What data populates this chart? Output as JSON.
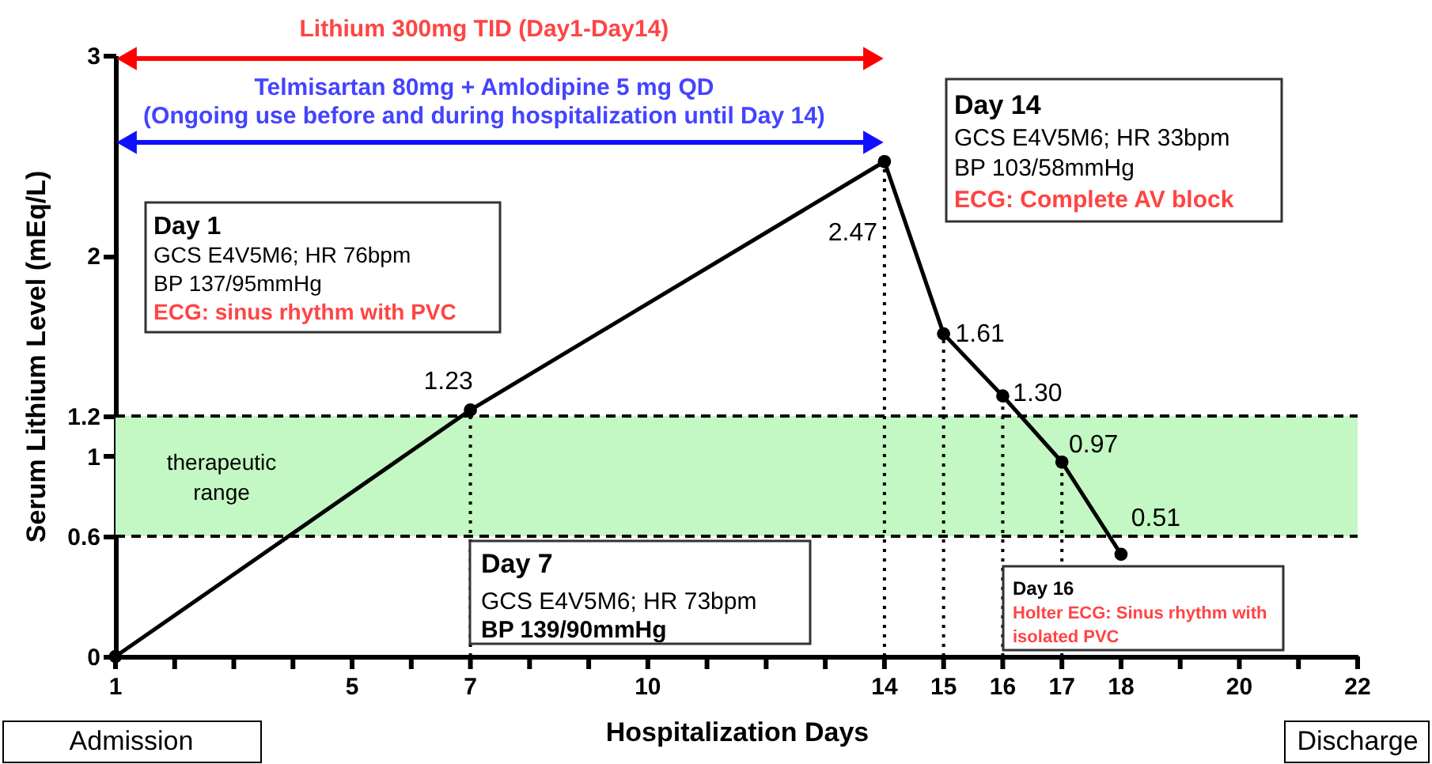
{
  "chart_data": {
    "type": "line",
    "xlabel": "Hospitalization Days",
    "ylabel": "Serum Lithium Level (mEq/L)",
    "x": [
      1,
      7,
      14,
      15,
      16,
      17,
      18
    ],
    "series": [
      {
        "color": "#000000",
        "values": [
          0,
          1.23,
          2.47,
          1.61,
          1.3,
          0.97,
          0.51
        ],
        "value_labels": [
          null,
          "1.23",
          "2.47",
          "1.61",
          "1.30",
          "0.97",
          "0.51"
        ]
      }
    ],
    "marker": "circle",
    "line_style": "solid",
    "grid": false,
    "xlim": [
      1,
      22
    ],
    "xticks": [
      1,
      {
        "value": 2,
        "label": null
      },
      {
        "value": 3,
        "label": null
      },
      {
        "value": 4,
        "label": null
      },
      5,
      {
        "value": 6,
        "label": null
      },
      7,
      {
        "value": 8,
        "label": null
      },
      {
        "value": 9,
        "label": null
      },
      10,
      {
        "value": 11,
        "label": null
      },
      {
        "value": 12,
        "label": null
      },
      {
        "value": 13,
        "label": null
      },
      14,
      15,
      16,
      17,
      18,
      {
        "value": 19,
        "label": null
      },
      20,
      {
        "value": 21,
        "label": null
      },
      22
    ],
    "ylim": [
      0,
      3
    ],
    "yticks": [
      0,
      0.6,
      1,
      1.2,
      2,
      3
    ],
    "bands": [
      {
        "axis": "y",
        "from": 0.6,
        "to": 1.2,
        "label": "therapeutic\nrange",
        "color": "#c3f7c3"
      }
    ],
    "ref_lines": [
      {
        "axis": "y",
        "value": 0.6,
        "line_style": "dashed"
      },
      {
        "axis": "y",
        "value": 1.2,
        "line_style": "dashed"
      },
      {
        "axis": "x",
        "value": 7,
        "line_style": "dotted"
      },
      {
        "axis": "x",
        "value": 14,
        "line_style": "dotted"
      },
      {
        "axis": "x",
        "value": 15,
        "line_style": "dotted"
      },
      {
        "axis": "x",
        "value": 16,
        "line_style": "dotted"
      },
      {
        "axis": "x",
        "value": 17,
        "line_style": "dotted"
      }
    ],
    "annotations": [
      "Lithium 300mg TID (Day1-Day14)",
      "Telmisartan 80mg + Amlodipine 5 mg QD\n(Ongoing use before and during hospitalization until Day 14)",
      "Day 1\nGCS E4V5M6; HR 76bpm\nBP 137/95mmHg\nECG: sinus rhythm with PVC",
      "Day 7\nGCS E4V5M6; HR 73bpm\nBP 139/90mmHg",
      "Day 14\nGCS E4V5M6; HR 33bpm\nBP 103/58mmHg\nECG: Complete AV block",
      "Day 16\nHolter ECG: Sinus rhythm with\nisolated PVC",
      "Admission",
      "Discharge"
    ]
  }
}
